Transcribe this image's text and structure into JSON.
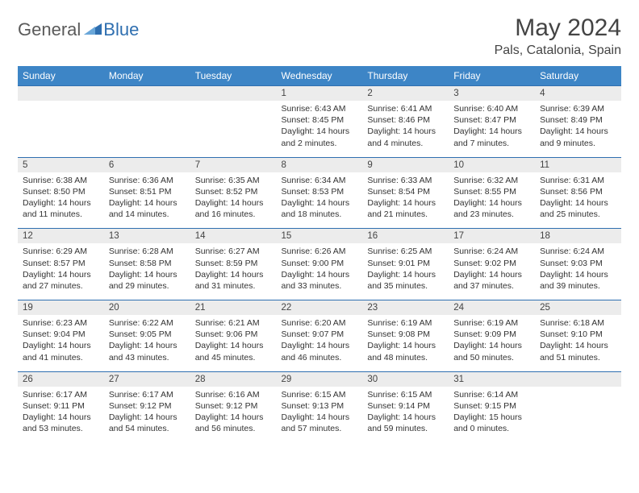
{
  "brand": {
    "text1": "General",
    "text2": "Blue"
  },
  "title": "May 2024",
  "location": "Pals, Catalonia, Spain",
  "colors": {
    "header_bg": "#3d85c6",
    "header_text": "#ffffff",
    "date_bg": "#ececec",
    "border": "#2f6fb0",
    "body_text": "#333333",
    "logo_gray": "#5a5a5a",
    "logo_blue": "#2f6fb0"
  },
  "day_names": [
    "Sunday",
    "Monday",
    "Tuesday",
    "Wednesday",
    "Thursday",
    "Friday",
    "Saturday"
  ],
  "weeks": [
    {
      "dates": [
        "",
        "",
        "",
        "1",
        "2",
        "3",
        "4"
      ],
      "details": [
        "",
        "",
        "",
        "Sunrise: 6:43 AM\nSunset: 8:45 PM\nDaylight: 14 hours and 2 minutes.",
        "Sunrise: 6:41 AM\nSunset: 8:46 PM\nDaylight: 14 hours and 4 minutes.",
        "Sunrise: 6:40 AM\nSunset: 8:47 PM\nDaylight: 14 hours and 7 minutes.",
        "Sunrise: 6:39 AM\nSunset: 8:49 PM\nDaylight: 14 hours and 9 minutes."
      ]
    },
    {
      "dates": [
        "5",
        "6",
        "7",
        "8",
        "9",
        "10",
        "11"
      ],
      "details": [
        "Sunrise: 6:38 AM\nSunset: 8:50 PM\nDaylight: 14 hours and 11 minutes.",
        "Sunrise: 6:36 AM\nSunset: 8:51 PM\nDaylight: 14 hours and 14 minutes.",
        "Sunrise: 6:35 AM\nSunset: 8:52 PM\nDaylight: 14 hours and 16 minutes.",
        "Sunrise: 6:34 AM\nSunset: 8:53 PM\nDaylight: 14 hours and 18 minutes.",
        "Sunrise: 6:33 AM\nSunset: 8:54 PM\nDaylight: 14 hours and 21 minutes.",
        "Sunrise: 6:32 AM\nSunset: 8:55 PM\nDaylight: 14 hours and 23 minutes.",
        "Sunrise: 6:31 AM\nSunset: 8:56 PM\nDaylight: 14 hours and 25 minutes."
      ]
    },
    {
      "dates": [
        "12",
        "13",
        "14",
        "15",
        "16",
        "17",
        "18"
      ],
      "details": [
        "Sunrise: 6:29 AM\nSunset: 8:57 PM\nDaylight: 14 hours and 27 minutes.",
        "Sunrise: 6:28 AM\nSunset: 8:58 PM\nDaylight: 14 hours and 29 minutes.",
        "Sunrise: 6:27 AM\nSunset: 8:59 PM\nDaylight: 14 hours and 31 minutes.",
        "Sunrise: 6:26 AM\nSunset: 9:00 PM\nDaylight: 14 hours and 33 minutes.",
        "Sunrise: 6:25 AM\nSunset: 9:01 PM\nDaylight: 14 hours and 35 minutes.",
        "Sunrise: 6:24 AM\nSunset: 9:02 PM\nDaylight: 14 hours and 37 minutes.",
        "Sunrise: 6:24 AM\nSunset: 9:03 PM\nDaylight: 14 hours and 39 minutes."
      ]
    },
    {
      "dates": [
        "19",
        "20",
        "21",
        "22",
        "23",
        "24",
        "25"
      ],
      "details": [
        "Sunrise: 6:23 AM\nSunset: 9:04 PM\nDaylight: 14 hours and 41 minutes.",
        "Sunrise: 6:22 AM\nSunset: 9:05 PM\nDaylight: 14 hours and 43 minutes.",
        "Sunrise: 6:21 AM\nSunset: 9:06 PM\nDaylight: 14 hours and 45 minutes.",
        "Sunrise: 6:20 AM\nSunset: 9:07 PM\nDaylight: 14 hours and 46 minutes.",
        "Sunrise: 6:19 AM\nSunset: 9:08 PM\nDaylight: 14 hours and 48 minutes.",
        "Sunrise: 6:19 AM\nSunset: 9:09 PM\nDaylight: 14 hours and 50 minutes.",
        "Sunrise: 6:18 AM\nSunset: 9:10 PM\nDaylight: 14 hours and 51 minutes."
      ]
    },
    {
      "dates": [
        "26",
        "27",
        "28",
        "29",
        "30",
        "31",
        ""
      ],
      "details": [
        "Sunrise: 6:17 AM\nSunset: 9:11 PM\nDaylight: 14 hours and 53 minutes.",
        "Sunrise: 6:17 AM\nSunset: 9:12 PM\nDaylight: 14 hours and 54 minutes.",
        "Sunrise: 6:16 AM\nSunset: 9:12 PM\nDaylight: 14 hours and 56 minutes.",
        "Sunrise: 6:15 AM\nSunset: 9:13 PM\nDaylight: 14 hours and 57 minutes.",
        "Sunrise: 6:15 AM\nSunset: 9:14 PM\nDaylight: 14 hours and 59 minutes.",
        "Sunrise: 6:14 AM\nSunset: 9:15 PM\nDaylight: 15 hours and 0 minutes.",
        ""
      ]
    }
  ]
}
